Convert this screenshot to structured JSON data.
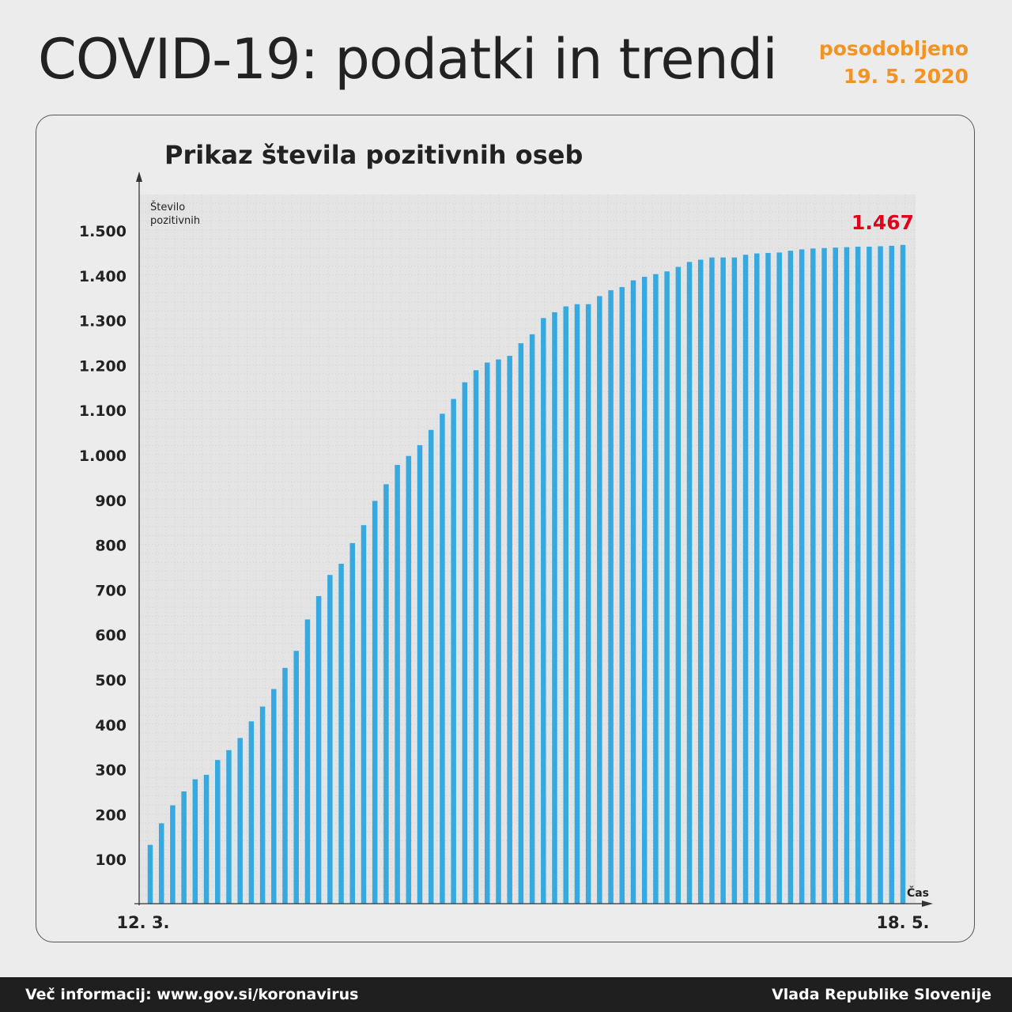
{
  "header": {
    "title": "COVID-19: podatki in trendi",
    "updated_label": "posodobljeno",
    "updated_date": "19. 5. 2020"
  },
  "colors": {
    "bar": "#36a9e0",
    "highlight": "#e3001b",
    "accent": "#f39322"
  },
  "chart_data": {
    "type": "bar",
    "title": "Prikaz števila pozitivnih oseb",
    "ylabel": "Število pozitivnih",
    "xlabel": "Čas",
    "ylim": [
      0,
      1560
    ],
    "yticks": [
      100,
      200,
      300,
      400,
      500,
      600,
      700,
      800,
      900,
      1000,
      1100,
      1200,
      1300,
      1400,
      1500
    ],
    "ytick_labels": [
      "100",
      "200",
      "300",
      "400",
      "500",
      "600",
      "700",
      "800",
      "900",
      "1.000",
      "1.100",
      "1.200",
      "1.300",
      "1.400",
      "1.500"
    ],
    "x_start_label": "12. 3.",
    "x_end_label": "18. 5.",
    "grid": true,
    "last_value_label": "1.467",
    "values": [
      131,
      179,
      219,
      250,
      277,
      287,
      320,
      342,
      369,
      406,
      439,
      478,
      525,
      563,
      633,
      685,
      732,
      757,
      803,
      843,
      897,
      934,
      977,
      997,
      1021,
      1055,
      1091,
      1124,
      1161,
      1188,
      1205,
      1212,
      1220,
      1248,
      1268,
      1304,
      1317,
      1330,
      1335,
      1335,
      1353,
      1366,
      1373,
      1388,
      1396,
      1402,
      1408,
      1418,
      1429,
      1434,
      1439,
      1439,
      1439,
      1445,
      1448,
      1449,
      1450,
      1454,
      1457,
      1459,
      1460,
      1461,
      1462,
      1463,
      1463,
      1464,
      1465,
      1467
    ]
  },
  "footer": {
    "info": "Več informacij: www.gov.si/koronavirus",
    "org": "Vlada Republike Slovenije"
  }
}
